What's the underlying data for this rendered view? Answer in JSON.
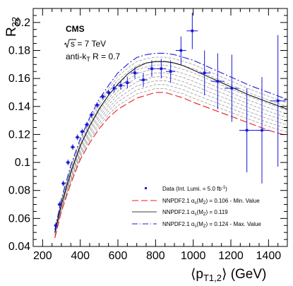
{
  "chart_data": {
    "type": "line",
    "xlim": [
      150,
      1500
    ],
    "ylim": [
      0.04,
      0.21
    ],
    "x_ticks": [
      "200",
      "400",
      "600",
      "800",
      "1000",
      "1200",
      "1400"
    ],
    "y_ticks": [
      "0.04",
      "0.06",
      "0.08",
      "0.1",
      "0.12",
      "0.14",
      "0.16",
      "0.18",
      "0.2"
    ],
    "xlabel": "⟨p",
    "xlabel_sub": "T1,2",
    "xlabel_unit": "⟩ (GeV)",
    "ylabel": "R",
    "ylabel_sub": "32",
    "annotations": {
      "experiment": "CMS",
      "energy_prefix": "s = 7 TeV",
      "algorithm": "anti-k",
      "algorithm_sub": "T",
      "algorithm_rest": " R = 0.7"
    },
    "legend": {
      "placement": "bottom-right",
      "data_label": "Data (Int. Lumi. = 5.0 fb",
      "data_label_sup": "-1",
      "data_label_end": ")",
      "min_label_pre": "NNPDF2.1 α",
      "min_label_sub": "s",
      "min_label_mid": "(M",
      "min_label_sub2": "Z",
      "min_label_post": ") = 0.106 - Min. Value",
      "mid_label_post": ") = 0.119",
      "max_label_post": ") = 0.124 - Max. Value"
    },
    "colors": {
      "data": "#1414d6",
      "min": "#ee1c1c",
      "central": "#000000",
      "max": "#1f1fd6",
      "band": "#9a9a9a"
    },
    "data_points": [
      {
        "x": 270,
        "y": 0.055,
        "err": 0.002,
        "xerr": 10
      },
      {
        "x": 290,
        "y": 0.07,
        "err": 0.002,
        "xerr": 10
      },
      {
        "x": 310,
        "y": 0.085,
        "err": 0.002,
        "xerr": 10
      },
      {
        "x": 335,
        "y": 0.1,
        "err": 0.002,
        "xerr": 12
      },
      {
        "x": 360,
        "y": 0.111,
        "err": 0.002,
        "xerr": 12
      },
      {
        "x": 385,
        "y": 0.118,
        "err": 0.002,
        "xerr": 12
      },
      {
        "x": 410,
        "y": 0.122,
        "err": 0.002,
        "xerr": 12
      },
      {
        "x": 435,
        "y": 0.127,
        "err": 0.002,
        "xerr": 12
      },
      {
        "x": 460,
        "y": 0.134,
        "err": 0.002,
        "xerr": 12
      },
      {
        "x": 490,
        "y": 0.141,
        "err": 0.002,
        "xerr": 15
      },
      {
        "x": 520,
        "y": 0.147,
        "err": 0.002,
        "xerr": 15
      },
      {
        "x": 550,
        "y": 0.15,
        "err": 0.002,
        "xerr": 15
      },
      {
        "x": 580,
        "y": 0.153,
        "err": 0.003,
        "xerr": 15
      },
      {
        "x": 615,
        "y": 0.155,
        "err": 0.003,
        "xerr": 18
      },
      {
        "x": 650,
        "y": 0.157,
        "err": 0.004,
        "xerr": 18
      },
      {
        "x": 690,
        "y": 0.164,
        "err": 0.004,
        "xerr": 20
      },
      {
        "x": 735,
        "y": 0.159,
        "err": 0.005,
        "xerr": 22
      },
      {
        "x": 780,
        "y": 0.167,
        "err": 0.006,
        "xerr": 22
      },
      {
        "x": 830,
        "y": 0.167,
        "err": 0.007,
        "xerr": 25
      },
      {
        "x": 880,
        "y": 0.165,
        "err": 0.008,
        "xerr": 25
      },
      {
        "x": 935,
        "y": 0.18,
        "err": 0.01,
        "xerr": 28
      },
      {
        "x": 995,
        "y": 0.194,
        "err": 0.013,
        "xerr": 30
      },
      {
        "x": 1060,
        "y": 0.164,
        "err": 0.016,
        "xerr": 32
      },
      {
        "x": 1130,
        "y": 0.158,
        "err": 0.02,
        "xerr": 35
      },
      {
        "x": 1205,
        "y": 0.153,
        "err": 0.024,
        "xerr": 38
      },
      {
        "x": 1285,
        "y": 0.123,
        "err": 0.03,
        "xerr": 40
      },
      {
        "x": 1365,
        "y": 0.123,
        "err": 0.038,
        "xerr": 40
      },
      {
        "x": 1450,
        "y": 0.144,
        "err": 0.047,
        "xerr": 42
      }
    ],
    "series": [
      {
        "role": "min",
        "x": [
          265,
          300,
          350,
          400,
          450,
          500,
          550,
          600,
          650,
          700,
          750,
          800,
          850,
          900,
          950,
          1000,
          1100,
          1200,
          1300,
          1400,
          1500
        ],
        "y": [
          0.046,
          0.065,
          0.085,
          0.102,
          0.114,
          0.124,
          0.132,
          0.138,
          0.142,
          0.146,
          0.148,
          0.15,
          0.15,
          0.148,
          0.146,
          0.143,
          0.138,
          0.133,
          0.128,
          0.123,
          0.119
        ]
      },
      {
        "role": "central",
        "x": [
          265,
          300,
          350,
          400,
          450,
          500,
          550,
          600,
          650,
          700,
          750,
          800,
          850,
          900,
          950,
          1000,
          1100,
          1200,
          1300,
          1400,
          1500
        ],
        "y": [
          0.05,
          0.07,
          0.093,
          0.112,
          0.126,
          0.138,
          0.148,
          0.156,
          0.163,
          0.168,
          0.171,
          0.172,
          0.172,
          0.171,
          0.169,
          0.166,
          0.16,
          0.154,
          0.148,
          0.143,
          0.138
        ]
      },
      {
        "role": "max",
        "x": [
          265,
          300,
          350,
          400,
          450,
          500,
          550,
          600,
          650,
          700,
          750,
          800,
          850,
          900,
          950,
          1000,
          1100,
          1200,
          1300,
          1400,
          1500
        ],
        "y": [
          0.052,
          0.074,
          0.098,
          0.117,
          0.132,
          0.145,
          0.155,
          0.164,
          0.17,
          0.175,
          0.177,
          0.178,
          0.178,
          0.177,
          0.175,
          0.173,
          0.167,
          0.161,
          0.155,
          0.15,
          0.145
        ]
      }
    ],
    "band_curve_count": 9
  }
}
